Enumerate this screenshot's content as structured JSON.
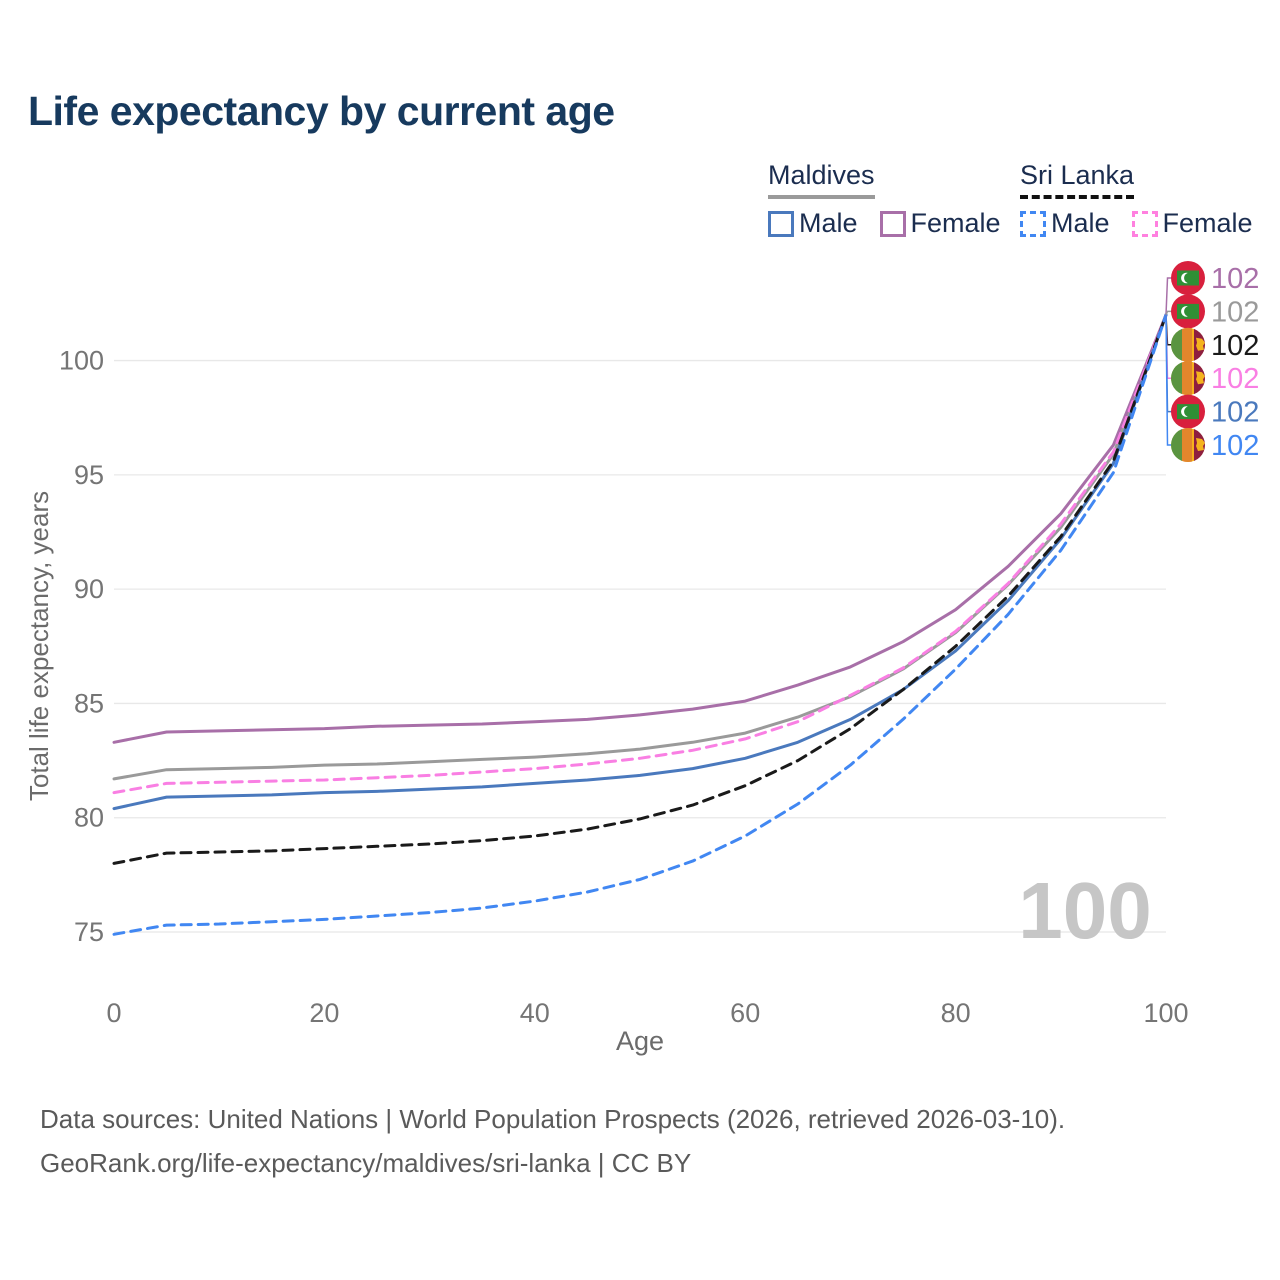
{
  "title": "Life expectancy by current age",
  "watermark": "100",
  "legend": {
    "groups": [
      {
        "label": "Maldives",
        "line_style": "solid",
        "underline_color": "#9a9a9a",
        "items": [
          {
            "label": "Male",
            "color": "#4a79bd",
            "dash": false
          },
          {
            "label": "Female",
            "color": "#a86fa8",
            "dash": false
          }
        ]
      },
      {
        "label": "Sri Lanka",
        "line_style": "dashed",
        "underline_color": "#111111",
        "items": [
          {
            "label": "Male",
            "color": "#4187f2",
            "dash": true
          },
          {
            "label": "Female",
            "color": "#ff80df",
            "dash": true
          }
        ]
      }
    ]
  },
  "footer": {
    "line1": "Data sources: United Nations | World Population Prospects (2026, retrieved 2026-03-10).",
    "line2": "GeoRank.org/life-expectancy/maldives/sri-lanka | CC BY"
  },
  "chart_data": {
    "type": "line",
    "title": "Life expectancy by current age",
    "xlabel": "Age",
    "ylabel": "Total life expectancy, years",
    "x_ticks": [
      0,
      20,
      40,
      60,
      80,
      100
    ],
    "y_ticks": [
      75,
      80,
      85,
      90,
      95,
      100
    ],
    "xlim": [
      0,
      100
    ],
    "ylim": [
      73.5,
      102.5
    ],
    "grid": "horizontal",
    "x": [
      0,
      5,
      10,
      15,
      20,
      25,
      30,
      35,
      40,
      45,
      50,
      55,
      60,
      65,
      70,
      75,
      80,
      85,
      90,
      95,
      100
    ],
    "series": [
      {
        "id": "maldives-female",
        "name": "Maldives Female",
        "country": "Maldives",
        "sex": "Female",
        "color": "#a86fa8",
        "dash": false,
        "flag": "maldives",
        "end_label": "102",
        "values": [
          83.3,
          83.75,
          83.8,
          83.85,
          83.9,
          84.0,
          84.05,
          84.1,
          84.2,
          84.3,
          84.5,
          84.75,
          85.1,
          85.8,
          86.6,
          87.7,
          89.1,
          91.0,
          93.3,
          96.3,
          102
        ]
      },
      {
        "id": "maldives-all",
        "name": "Maldives Both sexes",
        "country": "Maldives",
        "sex": "All",
        "color": "#9a9a9a",
        "dash": false,
        "flag": "maldives",
        "end_label": "102",
        "values": [
          81.7,
          82.1,
          82.15,
          82.2,
          82.3,
          82.35,
          82.45,
          82.55,
          82.65,
          82.8,
          83.0,
          83.3,
          83.7,
          84.4,
          85.3,
          86.5,
          88.1,
          90.2,
          92.7,
          95.9,
          102
        ]
      },
      {
        "id": "sri-lanka-all",
        "name": "Sri Lanka Both sexes",
        "country": "Sri Lanka",
        "sex": "All",
        "color": "#1a1a1a",
        "dash": true,
        "flag": "sri-lanka",
        "end_label": "102",
        "values": [
          78.0,
          78.45,
          78.5,
          78.55,
          78.65,
          78.75,
          78.85,
          79.0,
          79.2,
          79.5,
          79.95,
          80.55,
          81.4,
          82.5,
          83.9,
          85.6,
          87.5,
          89.7,
          92.3,
          95.6,
          102
        ]
      },
      {
        "id": "sri-lanka-female",
        "name": "Sri Lanka Female",
        "country": "Sri Lanka",
        "sex": "Female",
        "color": "#f97fe3",
        "dash": true,
        "flag": "sri-lanka",
        "end_label": "102",
        "values": [
          81.1,
          81.5,
          81.55,
          81.6,
          81.65,
          81.75,
          81.85,
          82.0,
          82.15,
          82.35,
          82.6,
          82.95,
          83.45,
          84.2,
          85.35,
          86.55,
          88.15,
          90.25,
          92.85,
          96.0,
          102
        ]
      },
      {
        "id": "maldives-male",
        "name": "Maldives Male",
        "country": "Maldives",
        "sex": "Male",
        "color": "#4a79bd",
        "dash": false,
        "flag": "maldives",
        "end_label": "102",
        "values": [
          80.4,
          80.9,
          80.95,
          81.0,
          81.1,
          81.15,
          81.25,
          81.35,
          81.5,
          81.65,
          81.85,
          82.15,
          82.6,
          83.3,
          84.3,
          85.6,
          87.3,
          89.5,
          92.2,
          95.5,
          102
        ]
      },
      {
        "id": "sri-lanka-male",
        "name": "Sri Lanka Male",
        "country": "Sri Lanka",
        "sex": "Male",
        "color": "#4187f2",
        "dash": true,
        "flag": "sri-lanka",
        "end_label": "102",
        "values": [
          74.9,
          75.3,
          75.35,
          75.45,
          75.55,
          75.7,
          75.85,
          76.05,
          76.35,
          76.75,
          77.3,
          78.1,
          79.2,
          80.6,
          82.3,
          84.3,
          86.5,
          88.9,
          91.7,
          95.1,
          102
        ]
      }
    ],
    "end_label_note": "all series converge to 102 at age 100; labels stacked top-to-bottom in series order"
  }
}
